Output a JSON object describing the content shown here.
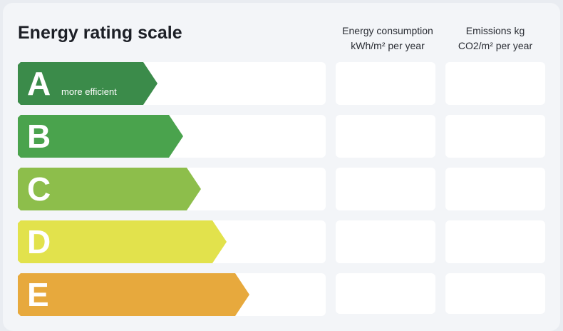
{
  "header": {
    "title": "Energy rating scale",
    "columns": [
      [
        "Energy consumption",
        "kWh/m² per year"
      ],
      [
        "Emissions kg",
        "CO2/m² per year"
      ]
    ]
  },
  "rows": [
    {
      "rating": "A",
      "note": "more efficient"
    },
    {
      "rating": "B"
    },
    {
      "rating": "C"
    },
    {
      "rating": "D"
    },
    {
      "rating": "E"
    }
  ]
}
